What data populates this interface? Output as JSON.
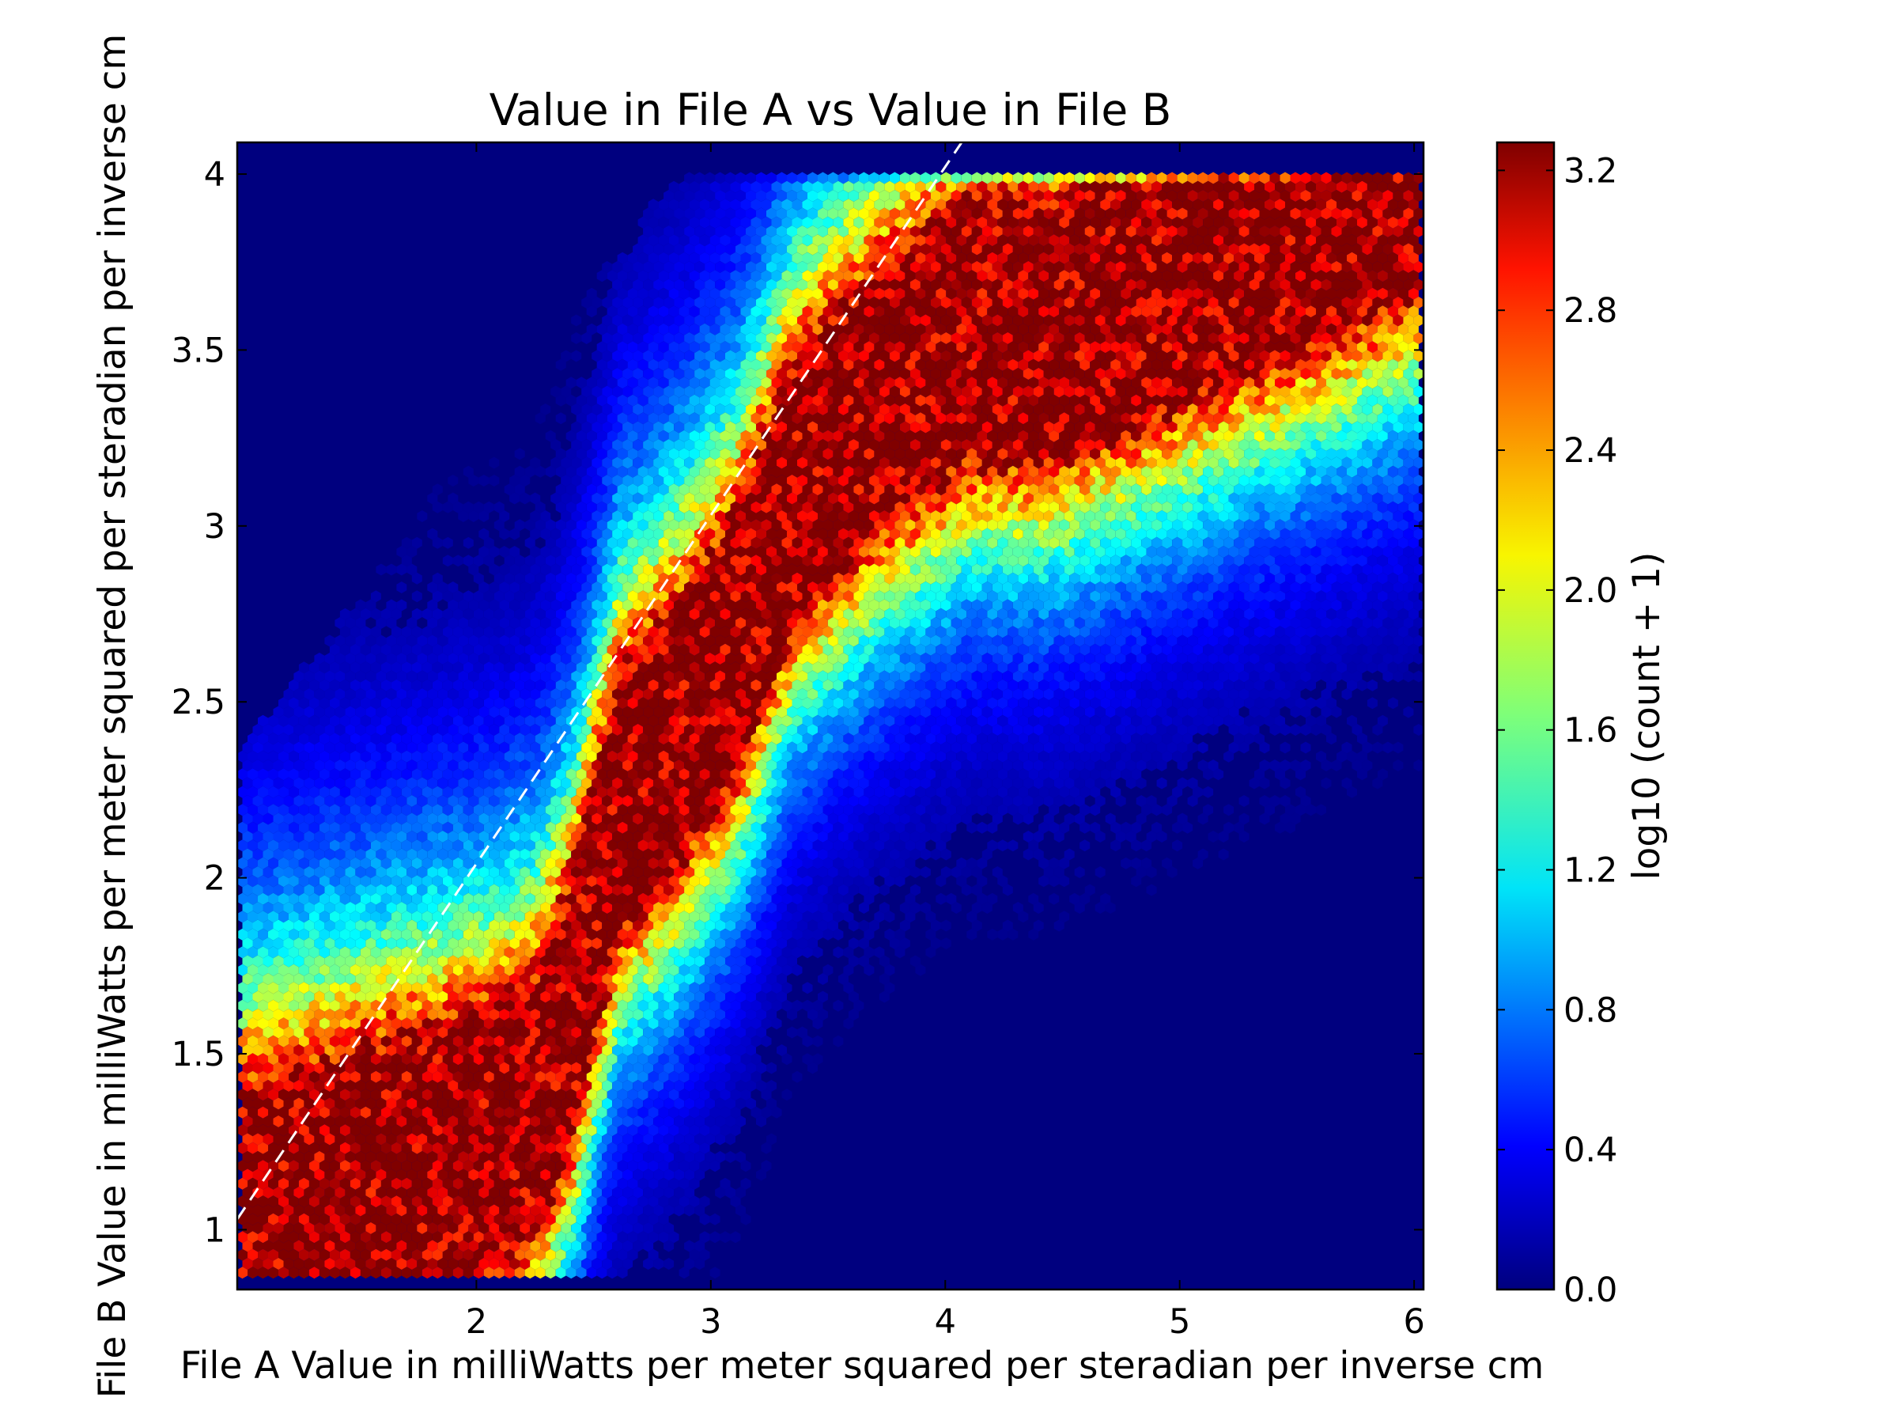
{
  "chart_data": {
    "type": "heatmap",
    "subtype": "hexbin",
    "title": "Value in File A vs Value in File B",
    "xlabel": "File A Value in milliWatts per meter squared per steradian per inverse cm",
    "ylabel": "File B Value in milliWatts per meter squared per steradian per inverse cm",
    "xlim": [
      0.98,
      6.04
    ],
    "ylim": [
      0.83,
      4.09
    ],
    "x_ticks": [
      2,
      3,
      4,
      5,
      6
    ],
    "x_tick_labels": [
      "2",
      "3",
      "4",
      "5",
      "6"
    ],
    "y_ticks": [
      1,
      1.5,
      2,
      2.5,
      3,
      3.5,
      4
    ],
    "y_tick_labels": [
      "1",
      "1.5",
      "2",
      "2.5",
      "3",
      "3.5",
      "4"
    ],
    "background_color": "#00007f",
    "grid": false,
    "colorbar": {
      "label": "log10 (count + 1)",
      "range": [
        0.0,
        3.28
      ],
      "colormap": "jet",
      "ticks": [
        0.0,
        0.4,
        0.8,
        1.2,
        1.6,
        2.0,
        2.4,
        2.8,
        3.2
      ],
      "tick_labels": [
        "0.0",
        "0.4",
        "0.8",
        "1.2",
        "1.6",
        "2.0",
        "2.4",
        "2.8",
        "3.2"
      ]
    },
    "reference_line": {
      "style": "dashed",
      "color": "#ffffff",
      "points": [
        [
          0.98,
          1.03
        ],
        [
          4.07,
          4.09
        ]
      ]
    },
    "density_ridge": {
      "x": [
        2.05,
        2.25,
        2.4,
        2.6,
        2.85,
        3.1,
        3.35,
        3.7,
        4.1,
        4.45
      ],
      "y": [
        1.2,
        1.3,
        1.55,
        2.15,
        2.35,
        2.6,
        3.05,
        3.3,
        3.5,
        3.5
      ],
      "peak_value": 3.25
    }
  }
}
